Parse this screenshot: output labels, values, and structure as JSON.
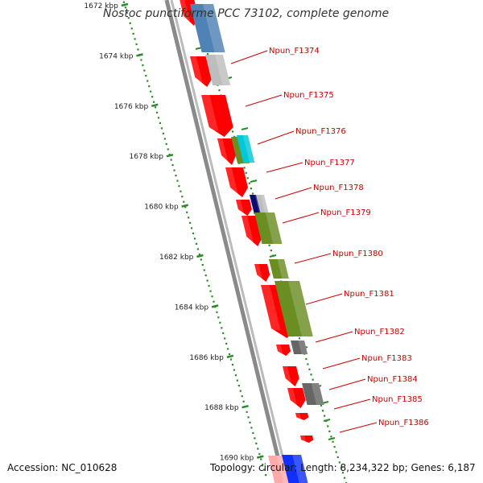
{
  "title": "Nostoc punctiforme PCC 73102, complete genome",
  "accession": "Accession: NC_010628",
  "summary": "Topology: circular; Length: 8,234,322 bp; Genes: 6,187",
  "colors": {
    "gene_red": "#ff0000",
    "olive": "#6b8e23",
    "steel_blue": "#4f82b5",
    "light_gray": "#bdbdbd",
    "dark_gray": "#666666",
    "navy": "#0a0a70",
    "cyan": "#00c8d8",
    "blue": "#1030ff",
    "pink": "#ffaaaa",
    "backbone": "#8a8a8a",
    "ruler_green": "#2a8a2a",
    "label_red": "#cc0000"
  },
  "ruler": [
    {
      "label": "1672 kbp"
    },
    {
      "label": "1674 kbp"
    },
    {
      "label": "1676 kbp"
    },
    {
      "label": "1678 kbp"
    },
    {
      "label": "1680 kbp"
    },
    {
      "label": "1682 kbp"
    },
    {
      "label": "1684 kbp"
    },
    {
      "label": "1686 kbp"
    },
    {
      "label": "1688 kbp"
    },
    {
      "label": "1690 kbp"
    }
  ],
  "gene_labels": [
    "Npun_F1374",
    "Npun_F1375",
    "Npun_F1376",
    "Npun_F1377",
    "Npun_F1378",
    "Npun_F1379",
    "Npun_F1380",
    "Npun_F1381",
    "Npun_F1382",
    "Npun_F1383",
    "Npun_F1384",
    "Npun_F1385",
    "Npun_F1386"
  ],
  "features": [
    {
      "color": "red",
      "kind": "arrow"
    },
    {
      "color": "steel_blue",
      "kind": "box"
    },
    {
      "color": "red",
      "kind": "arrow"
    },
    {
      "color": "light_gray",
      "kind": "box"
    },
    {
      "color": "red",
      "kind": "arrow"
    },
    {
      "color": "red",
      "kind": "arrow"
    },
    {
      "color": "olive",
      "kind": "box"
    },
    {
      "color": "cyan",
      "kind": "box"
    },
    {
      "color": "red",
      "kind": "arrow"
    },
    {
      "color": "red",
      "kind": "arrow"
    },
    {
      "color": "navy",
      "kind": "box"
    },
    {
      "color": "light_gray",
      "kind": "box"
    },
    {
      "color": "red",
      "kind": "arrow"
    },
    {
      "color": "olive",
      "kind": "box"
    },
    {
      "color": "red",
      "kind": "arrow"
    },
    {
      "color": "olive",
      "kind": "box"
    },
    {
      "color": "red",
      "kind": "arrow"
    },
    {
      "color": "olive",
      "kind": "box"
    },
    {
      "color": "red",
      "kind": "arrow"
    },
    {
      "color": "dark_gray",
      "kind": "box"
    },
    {
      "color": "red",
      "kind": "arrow"
    },
    {
      "color": "red",
      "kind": "arrow"
    },
    {
      "color": "dark_gray",
      "kind": "box"
    },
    {
      "color": "red",
      "kind": "arrow"
    },
    {
      "color": "red",
      "kind": "arrow"
    },
    {
      "color": "pink",
      "kind": "box"
    },
    {
      "color": "blue",
      "kind": "box"
    }
  ]
}
